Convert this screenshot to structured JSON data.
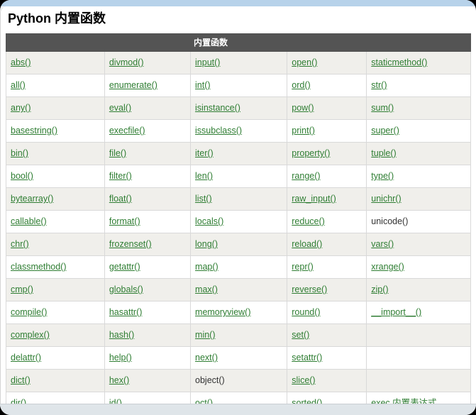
{
  "page": {
    "title": "Python 内置函数"
  },
  "table": {
    "header": "内置函数",
    "rows": [
      [
        {
          "text": "abs()",
          "link": true
        },
        {
          "text": "divmod()",
          "link": true
        },
        {
          "text": "input()",
          "link": true
        },
        {
          "text": "open()",
          "link": true
        },
        {
          "text": "staticmethod()",
          "link": true
        }
      ],
      [
        {
          "text": "all()",
          "link": true
        },
        {
          "text": "enumerate()",
          "link": true
        },
        {
          "text": "int()",
          "link": true
        },
        {
          "text": "ord()",
          "link": true
        },
        {
          "text": "str()",
          "link": true
        }
      ],
      [
        {
          "text": "any()",
          "link": true
        },
        {
          "text": "eval()",
          "link": true
        },
        {
          "text": "isinstance()",
          "link": true
        },
        {
          "text": "pow()",
          "link": true
        },
        {
          "text": "sum()",
          "link": true
        }
      ],
      [
        {
          "text": "basestring()",
          "link": true
        },
        {
          "text": "execfile()",
          "link": true
        },
        {
          "text": "issubclass()",
          "link": true
        },
        {
          "text": "print()",
          "link": true
        },
        {
          "text": "super()",
          "link": true
        }
      ],
      [
        {
          "text": "bin()",
          "link": true
        },
        {
          "text": "file()",
          "link": true
        },
        {
          "text": "iter()",
          "link": true
        },
        {
          "text": "property()",
          "link": true
        },
        {
          "text": "tuple()",
          "link": true
        }
      ],
      [
        {
          "text": "bool()",
          "link": true
        },
        {
          "text": "filter()",
          "link": true
        },
        {
          "text": "len()",
          "link": true
        },
        {
          "text": "range()",
          "link": true
        },
        {
          "text": "type()",
          "link": true
        }
      ],
      [
        {
          "text": "bytearray()",
          "link": true
        },
        {
          "text": "float()",
          "link": true
        },
        {
          "text": "list()",
          "link": true
        },
        {
          "text": "raw_input()",
          "link": true
        },
        {
          "text": "unichr()",
          "link": true
        }
      ],
      [
        {
          "text": "callable()",
          "link": true
        },
        {
          "text": "format()",
          "link": true
        },
        {
          "text": "locals()",
          "link": true
        },
        {
          "text": "reduce()",
          "link": true
        },
        {
          "text": "unicode()",
          "link": false
        }
      ],
      [
        {
          "text": "chr()",
          "link": true
        },
        {
          "text": "frozenset()",
          "link": true
        },
        {
          "text": "long()",
          "link": true
        },
        {
          "text": "reload()",
          "link": true
        },
        {
          "text": "vars()",
          "link": true
        }
      ],
      [
        {
          "text": "classmethod()",
          "link": true
        },
        {
          "text": "getattr()",
          "link": true
        },
        {
          "text": "map()",
          "link": true
        },
        {
          "text": "repr()",
          "link": true
        },
        {
          "text": "xrange()",
          "link": true
        }
      ],
      [
        {
          "text": "cmp()",
          "link": true
        },
        {
          "text": "globals()",
          "link": true
        },
        {
          "text": "max()",
          "link": true
        },
        {
          "text": "reverse()",
          "link": true
        },
        {
          "text": "zip()",
          "link": true
        }
      ],
      [
        {
          "text": "compile()",
          "link": true
        },
        {
          "text": "hasattr()",
          "link": true
        },
        {
          "text": "memoryview()",
          "link": true
        },
        {
          "text": "round()",
          "link": true
        },
        {
          "text": "__import__()",
          "link": true
        }
      ],
      [
        {
          "text": "complex()",
          "link": true
        },
        {
          "text": "hash()",
          "link": true
        },
        {
          "text": "min()",
          "link": true
        },
        {
          "text": "set()",
          "link": true
        },
        {
          "text": "",
          "link": false
        }
      ],
      [
        {
          "text": "delattr()",
          "link": true
        },
        {
          "text": "help()",
          "link": true
        },
        {
          "text": "next()",
          "link": true
        },
        {
          "text": "setattr()",
          "link": true
        },
        {
          "text": "",
          "link": false
        }
      ],
      [
        {
          "text": "dict()",
          "link": true
        },
        {
          "text": "hex()",
          "link": true
        },
        {
          "text": "object()",
          "link": false
        },
        {
          "text": "slice()",
          "link": true
        },
        {
          "text": "",
          "link": false
        }
      ],
      [
        {
          "text": "dir()",
          "link": true
        },
        {
          "text": "id()",
          "link": true
        },
        {
          "text": "oct()",
          "link": true
        },
        {
          "text": "sorted()",
          "link": true
        },
        {
          "text": "exec 内置表达式",
          "link": true
        }
      ]
    ]
  },
  "colors": {
    "link_green": "#2e7d32",
    "header_bg": "#545454",
    "row_stripe": "#f0efeb",
    "top_strip": "#b7d2ea",
    "bottom_strip": "#dfe5e9"
  }
}
